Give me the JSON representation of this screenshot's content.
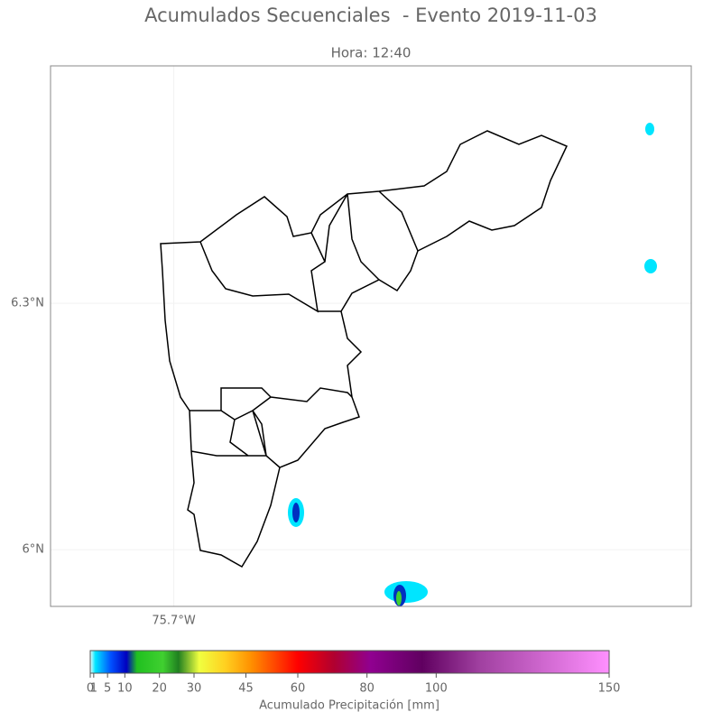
{
  "map": {
    "title": "Acumulados Secuenciales  - Evento 2019-11-03",
    "subtitle": "Hora: 12:40",
    "xlim": [
      -75.85,
      -75.07
    ],
    "ylim": [
      5.931,
      6.589
    ],
    "lat_ticks": [
      {
        "value": 6.3,
        "label": "6.3°N"
      },
      {
        "value": 6,
        "label": "6°N"
      }
    ],
    "lon_ticks": [
      {
        "value": -75.7,
        "label": "75.7°W"
      }
    ],
    "colorbar": {
      "label": "Acumulado Precipitación [mm]",
      "lim": [
        0,
        150
      ],
      "ticks": [
        0,
        1,
        5,
        10,
        20,
        30,
        45,
        60,
        80,
        100,
        150
      ]
    }
  }
}
